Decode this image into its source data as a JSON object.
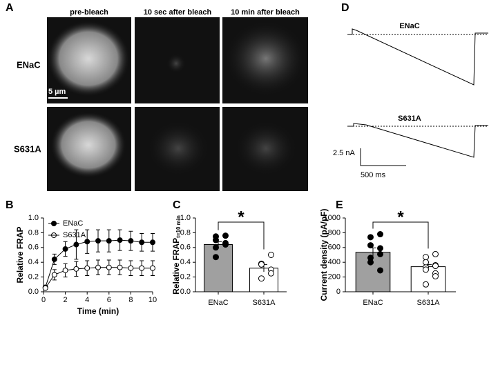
{
  "panel_a": {
    "letter": "A",
    "columns": [
      "pre-bleach",
      "10 sec after bleach",
      "10 min after bleach"
    ],
    "rows": [
      "ENaC",
      "S631A"
    ],
    "scale_bar": "5 µm"
  },
  "panel_d": {
    "letter": "D",
    "rows": [
      "ENaC",
      "S631A"
    ],
    "scale_y": "2.5 nA",
    "scale_x": "500 ms"
  },
  "chart_data": [
    {
      "type": "line",
      "letter": "B",
      "ylabel": "Relative FRAP",
      "xlabel": "Time (min)",
      "x": [
        0.17,
        1,
        2,
        3,
        4,
        5,
        6,
        7,
        8,
        9,
        10
      ],
      "series": [
        {
          "name": "ENaC",
          "color": "#000000",
          "values": [
            0.06,
            0.44,
            0.58,
            0.64,
            0.68,
            0.69,
            0.69,
            0.7,
            0.69,
            0.67,
            0.67
          ],
          "errors": [
            0.03,
            0.07,
            0.1,
            0.2,
            0.16,
            0.15,
            0.15,
            0.14,
            0.13,
            0.12,
            0.12
          ]
        },
        {
          "name": "S631A",
          "color": "#ffffff",
          "values": [
            0.05,
            0.23,
            0.29,
            0.31,
            0.32,
            0.33,
            0.33,
            0.33,
            0.32,
            0.32,
            0.32
          ],
          "errors": [
            0.02,
            0.07,
            0.09,
            0.1,
            0.1,
            0.1,
            0.1,
            0.1,
            0.1,
            0.1,
            0.1
          ]
        }
      ],
      "xlim": [
        0,
        10
      ],
      "xticks": [
        0,
        2,
        4,
        6,
        8,
        10
      ],
      "ylim": [
        0,
        1
      ],
      "yticks": [
        {
          "value": 0,
          "label": "0.0"
        },
        0.2,
        0.4,
        0.6,
        0.8,
        {
          "value": 1,
          "label": "1.0"
        }
      ],
      "legend": "top-left"
    },
    {
      "type": "bar",
      "letter": "C",
      "ylabel": "Relative FRAP",
      "ylabel_sub": "t=10 min",
      "significance": "*",
      "categories": [
        "ENaC",
        "S631A"
      ],
      "values": [
        0.64,
        0.32
      ],
      "errors": [
        0.04,
        0.05
      ],
      "colors": [
        "#a0a0a0",
        "#ffffff"
      ],
      "point_colors": [
        "#000000",
        "#ffffff"
      ],
      "points": [
        [
          0.76,
          0.75,
          0.7,
          0.66,
          0.64,
          0.6,
          0.47
        ],
        [
          0.5,
          0.38,
          0.37,
          0.3,
          0.25,
          0.18
        ]
      ],
      "ylim": [
        0,
        1
      ],
      "yticks": [
        {
          "value": 0,
          "label": "0.0"
        },
        0.2,
        0.4,
        0.6,
        0.8,
        {
          "value": 1,
          "label": "1.0"
        }
      ]
    },
    {
      "type": "bar",
      "letter": "E",
      "ylabel": "Current density (pA/pF)",
      "significance": "*",
      "categories": [
        "ENaC",
        "S631A"
      ],
      "values": [
        535,
        340
      ],
      "errors": [
        60,
        30
      ],
      "colors": [
        "#a0a0a0",
        "#ffffff"
      ],
      "point_colors": [
        "#000000",
        "#ffffff"
      ],
      "points": [
        [
          780,
          740,
          630,
          590,
          510,
          460,
          400,
          290
        ],
        [
          510,
          470,
          400,
          360,
          350,
          330,
          300,
          250,
          210,
          100
        ]
      ],
      "ylim": [
        0,
        1000
      ],
      "yticks": [
        0,
        200,
        400,
        600,
        800,
        1000
      ]
    }
  ]
}
